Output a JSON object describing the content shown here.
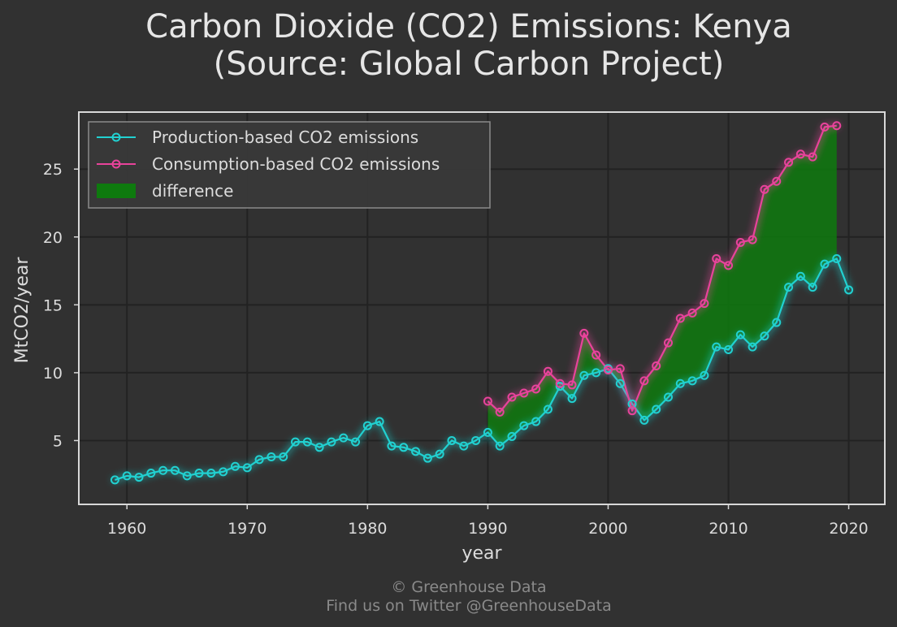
{
  "chart_data": {
    "type": "line",
    "title_line1": "Carbon Dioxide (CO2) Emissions: Kenya",
    "title_line2": "(Source: Global Carbon Project)",
    "xlabel": "year",
    "ylabel": "MtCO2/year",
    "xlim": [
      1956,
      2023
    ],
    "ylim": [
      0.3,
      29.2
    ],
    "xticks": [
      1960,
      1970,
      1980,
      1990,
      2000,
      2010,
      2020
    ],
    "yticks": [
      5,
      10,
      15,
      20,
      25
    ],
    "grid": true,
    "legend_position": "top-left",
    "series": [
      {
        "name": "Production-based CO2 emissions",
        "color": "#21d1d1",
        "x": [
          1959,
          1960,
          1961,
          1962,
          1963,
          1964,
          1965,
          1966,
          1967,
          1968,
          1969,
          1970,
          1971,
          1972,
          1973,
          1974,
          1975,
          1976,
          1977,
          1978,
          1979,
          1980,
          1981,
          1982,
          1983,
          1984,
          1985,
          1986,
          1987,
          1988,
          1989,
          1990,
          1991,
          1992,
          1993,
          1994,
          1995,
          1996,
          1997,
          1998,
          1999,
          2000,
          2001,
          2002,
          2003,
          2004,
          2005,
          2006,
          2007,
          2008,
          2009,
          2010,
          2011,
          2012,
          2013,
          2014,
          2015,
          2016,
          2017,
          2018,
          2019,
          2020
        ],
        "values": [
          2.1,
          2.4,
          2.3,
          2.6,
          2.8,
          2.8,
          2.4,
          2.6,
          2.6,
          2.7,
          3.1,
          3.0,
          3.6,
          3.8,
          3.8,
          4.9,
          4.9,
          4.5,
          4.9,
          5.2,
          4.9,
          6.1,
          6.4,
          4.6,
          4.5,
          4.2,
          3.7,
          4.0,
          5.0,
          4.6,
          5.0,
          5.6,
          4.6,
          5.3,
          6.1,
          6.4,
          7.3,
          9.0,
          8.1,
          9.8,
          10.0,
          10.3,
          9.2,
          7.7,
          6.5,
          7.3,
          8.2,
          9.2,
          9.4,
          9.8,
          11.9,
          11.7,
          12.8,
          11.9,
          12.7,
          13.7,
          16.3,
          17.1,
          16.3,
          18.0,
          18.4,
          16.1
        ]
      },
      {
        "name": "Consumption-based CO2 emissions",
        "color": "#e8439b",
        "x": [
          1990,
          1991,
          1992,
          1993,
          1994,
          1995,
          1996,
          1997,
          1998,
          1999,
          2000,
          2001,
          2002,
          2003,
          2004,
          2005,
          2006,
          2007,
          2008,
          2009,
          2010,
          2011,
          2012,
          2013,
          2014,
          2015,
          2016,
          2017,
          2018,
          2019
        ],
        "values": [
          7.9,
          7.1,
          8.2,
          8.5,
          8.8,
          10.1,
          9.2,
          9.1,
          12.9,
          11.3,
          10.2,
          10.3,
          7.2,
          9.4,
          10.5,
          12.2,
          14.0,
          14.4,
          15.1,
          18.4,
          17.9,
          19.6,
          19.8,
          23.5,
          24.1,
          25.5,
          26.1,
          25.9,
          28.1,
          28.2
        ]
      }
    ],
    "difference": {
      "name": "difference",
      "color": "#0e7a0e"
    }
  },
  "footer": {
    "line1": "© Greenhouse Data",
    "line2": "Find us on Twitter @GreenhouseData"
  }
}
